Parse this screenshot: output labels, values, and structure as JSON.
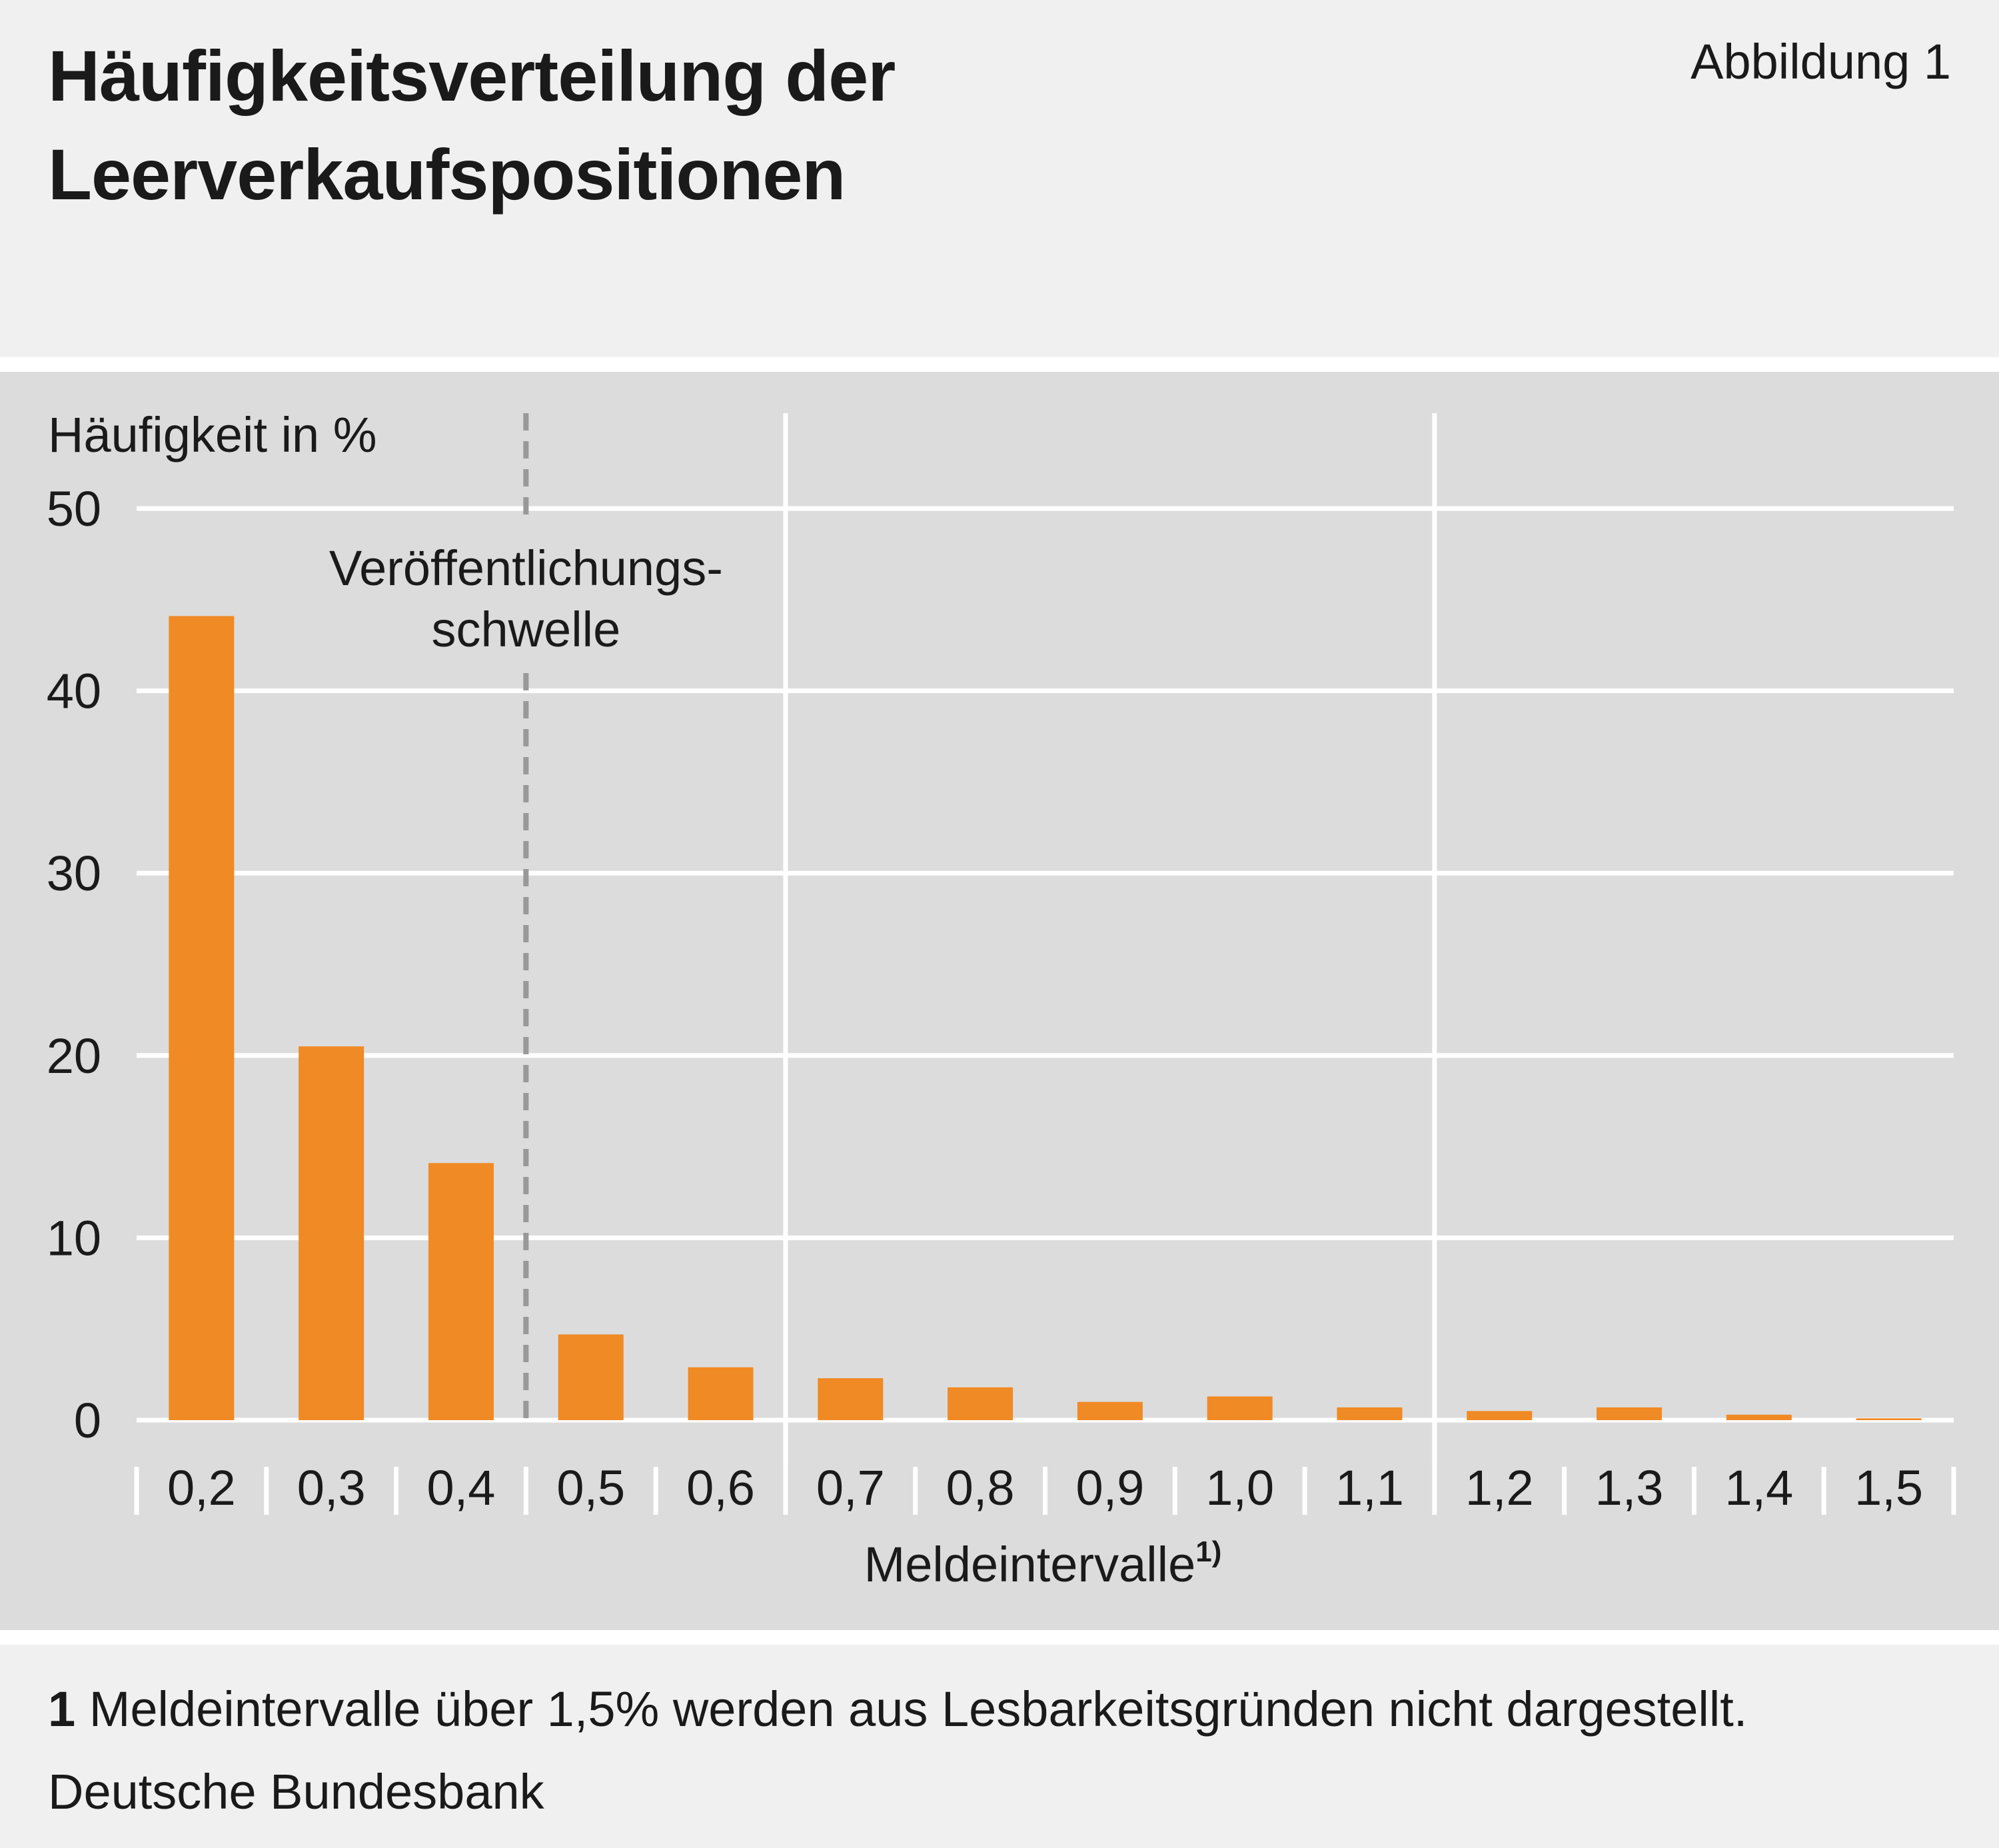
{
  "header": {
    "title_line1": "Häufigkeitsverteilung der",
    "title_line2": "Leerverkaufspositionen",
    "figure_label": "Abbildung 1"
  },
  "footer": {
    "footnote_number": "1",
    "footnote_text": "Meldeintervalle über 1,5% werden aus Lesbarkeitsgründen nicht dargestellt.",
    "source": "Deutsche Bundesbank"
  },
  "colors": {
    "bar": "#f08a24",
    "chart_background": "#dcdcdc",
    "page_background": "#f0f0f0",
    "gridline": "#ffffff",
    "threshold_line": "#999999"
  },
  "chart_data": {
    "type": "bar",
    "title": "Häufigkeitsverteilung der Leerverkaufspositionen",
    "ylabel": "Häufigkeit in %",
    "xlabel": "Meldeintervalle",
    "xlabel_superscript": "1)",
    "ylim": [
      0,
      50
    ],
    "yticks": [
      0,
      10,
      20,
      30,
      40,
      50
    ],
    "grid": true,
    "categories": [
      "0,2",
      "0,3",
      "0,4",
      "0,5",
      "0,6",
      "0,7",
      "0,8",
      "0,9",
      "1,0",
      "1,1",
      "1,2",
      "1,3",
      "1,4",
      "1,5"
    ],
    "values": [
      44.1,
      20.5,
      14.1,
      4.7,
      2.9,
      2.3,
      1.8,
      1.0,
      1.3,
      0.7,
      0.5,
      0.7,
      0.3,
      0.1
    ],
    "threshold": {
      "label_line1": "Veröffentlichungs-",
      "label_line2": "schwelle",
      "between_categories": [
        "0,4",
        "0,5"
      ]
    }
  }
}
